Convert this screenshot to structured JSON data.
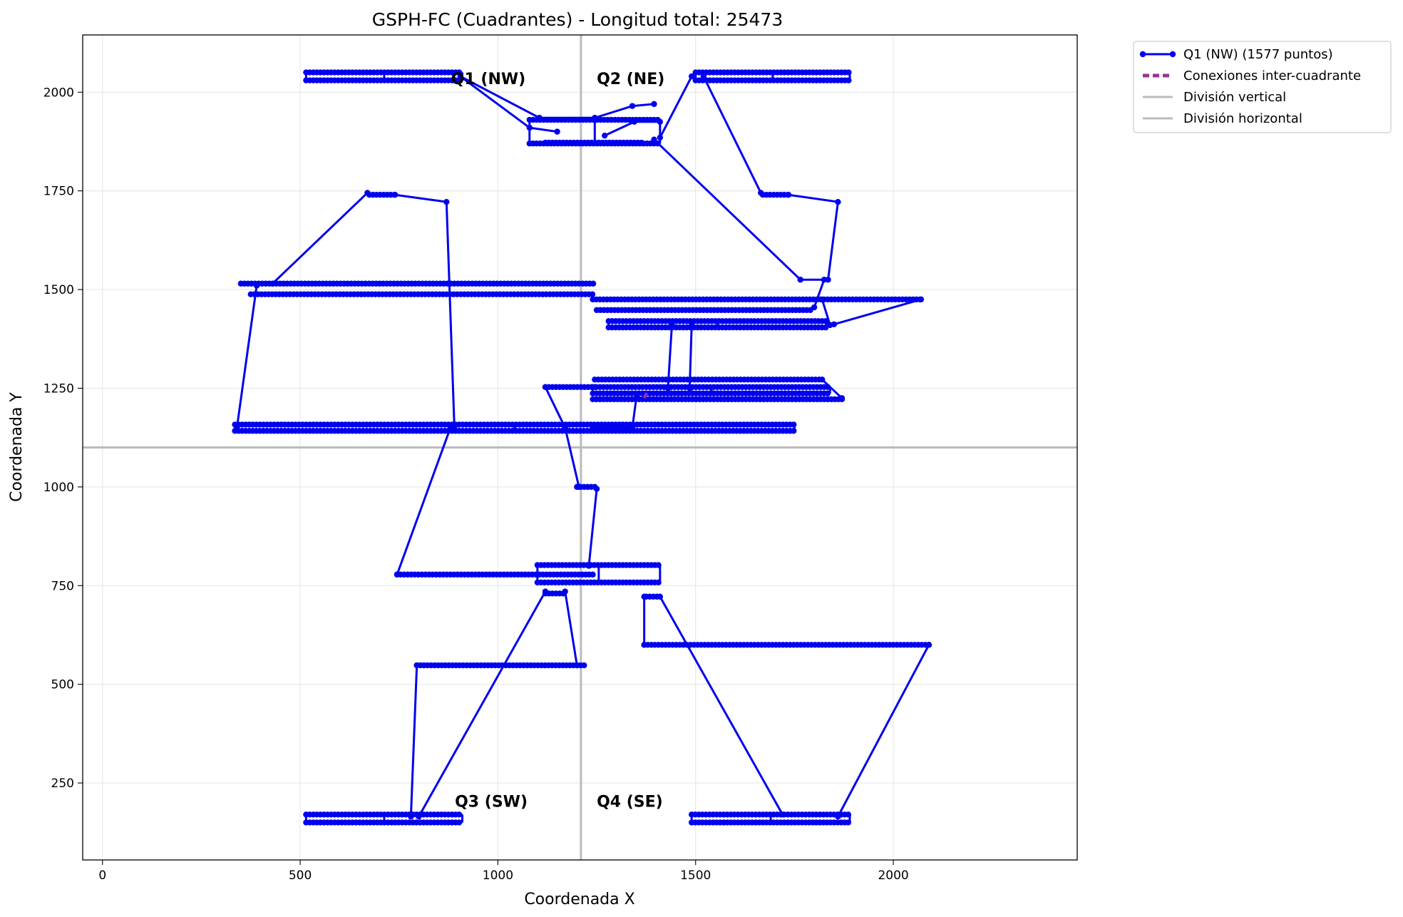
{
  "chart_data": {
    "type": "line",
    "title": "GSPH-FC (Cuadrantes) - Longitud total: 25473",
    "xlabel": "Coordenada X",
    "ylabel": "Coordenada Y",
    "xlim": [
      -50,
      2465
    ],
    "ylim": [
      55,
      2145
    ],
    "xticks": [
      0,
      500,
      1000,
      1500,
      2000
    ],
    "yticks": [
      250,
      500,
      750,
      1000,
      1250,
      1500,
      1750,
      2000
    ],
    "grid": true,
    "legend_position": "outside-top-right",
    "divisions": {
      "vertical_x": 1210,
      "horizontal_y": 1100
    },
    "quadrant_labels": [
      {
        "text": "Q1 (NW)",
        "x": 1070,
        "y": 2020,
        "anchor": "end"
      },
      {
        "text": "Q2 (NE)",
        "x": 1250,
        "y": 2020,
        "anchor": "start"
      },
      {
        "text": "Q3 (SW)",
        "x": 1075,
        "y": 190,
        "anchor": "end"
      },
      {
        "text": "Q4 (SE)",
        "x": 1250,
        "y": 190,
        "anchor": "start"
      }
    ],
    "legend": [
      {
        "label": "Q1 (NW) (1577 puntos)",
        "style": "line-marker",
        "color": "#0000ee"
      },
      {
        "label": "Conexiones inter-cuadrante",
        "style": "dashed",
        "color": "#993399"
      },
      {
        "label": "División vertical",
        "style": "line",
        "color": "#bbbbbb"
      },
      {
        "label": "División horizontal",
        "style": "line",
        "color": "#bbbbbb"
      }
    ],
    "series": [
      {
        "name": "Q1 (NW) (1577 puntos)",
        "color": "#0000ee",
        "segments": [
          {
            "kind": "band",
            "x0": 515,
            "x1": 910,
            "y": 2040,
            "dy": 10,
            "step": 9
          },
          {
            "kind": "band",
            "x0": 1500,
            "x1": 1890,
            "y": 2040,
            "dy": 10,
            "step": 9
          },
          {
            "kind": "band",
            "x0": 515,
            "x1": 910,
            "y": 160,
            "dy": 10,
            "step": 9
          },
          {
            "kind": "band",
            "x0": 1490,
            "x1": 1890,
            "y": 160,
            "dy": 10,
            "step": 9
          },
          {
            "kind": "band",
            "x0": 350,
            "x1": 1245,
            "y": 1515,
            "dy": 0,
            "step": 9
          },
          {
            "kind": "band",
            "x0": 375,
            "x1": 1240,
            "y": 1488,
            "dy": 0,
            "step": 9
          },
          {
            "kind": "band",
            "x0": 1240,
            "x1": 2070,
            "y": 1475,
            "dy": 0,
            "step": 9
          },
          {
            "kind": "band",
            "x0": 1250,
            "x1": 1790,
            "y": 1448,
            "dy": 0,
            "step": 9
          },
          {
            "kind": "band",
            "x0": 1280,
            "x1": 1830,
            "y": 1412,
            "dy": 8,
            "step": 9
          },
          {
            "kind": "band",
            "x0": 1120,
            "x1": 1250,
            "y": 1253,
            "dy": 0,
            "step": 9
          },
          {
            "kind": "band",
            "x0": 1245,
            "x1": 1820,
            "y": 1272,
            "dy": 0,
            "step": 9
          },
          {
            "kind": "band",
            "x0": 1240,
            "x1": 1840,
            "y": 1245,
            "dy": 8,
            "step": 9
          },
          {
            "kind": "band",
            "x0": 1240,
            "x1": 1870,
            "y": 1222,
            "dy": 0,
            "step": 9
          },
          {
            "kind": "band",
            "x0": 335,
            "x1": 1750,
            "y": 1150,
            "dy": 8,
            "step": 9
          },
          {
            "kind": "band",
            "x0": 745,
            "x1": 1240,
            "y": 778,
            "dy": 0,
            "step": 9
          },
          {
            "kind": "band",
            "x0": 1100,
            "x1": 1410,
            "y": 780,
            "dy": 22,
            "step": 9
          },
          {
            "kind": "band",
            "x0": 1370,
            "x1": 2090,
            "y": 600,
            "dy": 0,
            "step": 9
          },
          {
            "kind": "band",
            "x0": 795,
            "x1": 1220,
            "y": 548,
            "dy": 0,
            "step": 9
          },
          {
            "kind": "band",
            "x0": 1080,
            "x1": 1410,
            "y": 1900,
            "dy": 30,
            "step": 9
          },
          {
            "kind": "band",
            "x0": 1120,
            "x1": 1370,
            "y": 1872,
            "dy": 0,
            "step": 9
          },
          {
            "kind": "band",
            "x0": 675,
            "x1": 740,
            "y": 1740,
            "dy": 0,
            "step": 9
          },
          {
            "kind": "band",
            "x0": 1670,
            "x1": 1735,
            "y": 1740,
            "dy": 0,
            "step": 9
          },
          {
            "kind": "band",
            "x0": 1200,
            "x1": 1250,
            "y": 1000,
            "dy": 0,
            "step": 9
          },
          {
            "kind": "band",
            "x0": 1120,
            "x1": 1170,
            "y": 730,
            "dy": 0,
            "step": 9
          },
          {
            "kind": "band",
            "x0": 1375,
            "x1": 1410,
            "y": 722,
            "dy": 0,
            "step": 9
          },
          {
            "kind": "path",
            "points": [
              [
                905,
                2040
              ],
              [
                1105,
                1935
              ],
              [
                1245,
                1935
              ],
              [
                1340,
                1965
              ],
              [
                1395,
                1970
              ]
            ]
          },
          {
            "kind": "path",
            "points": [
              [
                905,
                2040
              ],
              [
                1080,
                1910
              ],
              [
                1150,
                1900
              ]
            ]
          },
          {
            "kind": "path",
            "points": [
              [
                1270,
                1890
              ],
              [
                1345,
                1925
              ],
              [
                1410,
                1925
              ]
            ]
          },
          {
            "kind": "path",
            "points": [
              [
                1410,
                1885
              ],
              [
                1490,
                2040
              ]
            ]
          },
          {
            "kind": "path",
            "points": [
              [
                1520,
                2040
              ],
              [
                1665,
                1745
              ]
            ]
          },
          {
            "kind": "path",
            "points": [
              [
                1395,
                1880
              ],
              [
                1765,
                1525
              ],
              [
                1825,
                1525
              ],
              [
                1800,
                1455
              ]
            ]
          },
          {
            "kind": "path",
            "points": [
              [
                1735,
                1740
              ],
              [
                1860,
                1722
              ],
              [
                1835,
                1525
              ]
            ]
          },
          {
            "kind": "path",
            "points": [
              [
                340,
                1150
              ],
              [
                390,
                1510
              ]
            ]
          },
          {
            "kind": "path",
            "points": [
              [
                430,
                1515
              ],
              [
                670,
                1745
              ]
            ]
          },
          {
            "kind": "path",
            "points": [
              [
                740,
                1740
              ],
              [
                870,
                1722
              ],
              [
                890,
                1150
              ]
            ]
          },
          {
            "kind": "path",
            "points": [
              [
                745,
                778
              ],
              [
                880,
                1150
              ]
            ]
          },
          {
            "kind": "path",
            "points": [
              [
                1120,
                1253
              ],
              [
                1170,
                1150
              ],
              [
                1205,
                1000
              ]
            ]
          },
          {
            "kind": "path",
            "points": [
              [
                1250,
                995
              ],
              [
                1230,
                800
              ]
            ]
          },
          {
            "kind": "path",
            "points": [
              [
                1440,
                1410
              ],
              [
                1430,
                1250
              ]
            ]
          },
          {
            "kind": "path",
            "points": [
              [
                1490,
                1410
              ],
              [
                1485,
                1250
              ]
            ]
          },
          {
            "kind": "path",
            "points": [
              [
                1820,
                1475
              ],
              [
                1840,
                1410
              ]
            ]
          },
          {
            "kind": "path",
            "points": [
              [
                1820,
                1272
              ],
              [
                1870,
                1225
              ]
            ]
          },
          {
            "kind": "path",
            "points": [
              [
                2070,
                1475
              ],
              [
                1850,
                1412
              ]
            ]
          },
          {
            "kind": "path",
            "points": [
              [
                1240,
                1150
              ],
              [
                1340,
                1150
              ],
              [
                1350,
                1225
              ]
            ]
          },
          {
            "kind": "path",
            "points": [
              [
                1120,
                735
              ],
              [
                800,
                165
              ]
            ]
          },
          {
            "kind": "path",
            "points": [
              [
                795,
                548
              ],
              [
                780,
                165
              ]
            ]
          },
          {
            "kind": "path",
            "points": [
              [
                1170,
                735
              ],
              [
                1200,
                548
              ]
            ]
          },
          {
            "kind": "path",
            "points": [
              [
                1410,
                722
              ],
              [
                1720,
                170
              ]
            ]
          },
          {
            "kind": "path",
            "points": [
              [
                2090,
                600
              ],
              [
                1860,
                165
              ]
            ]
          },
          {
            "kind": "path",
            "points": [
              [
                1370,
                722
              ],
              [
                1370,
                600
              ]
            ]
          }
        ]
      },
      {
        "name": "Conexiones inter-cuadrante",
        "color": "#993399",
        "segments": [
          {
            "kind": "path",
            "dashed": true,
            "points": [
              [
                1370,
                1225
              ],
              [
                1380,
                1245
              ]
            ]
          }
        ]
      }
    ]
  }
}
